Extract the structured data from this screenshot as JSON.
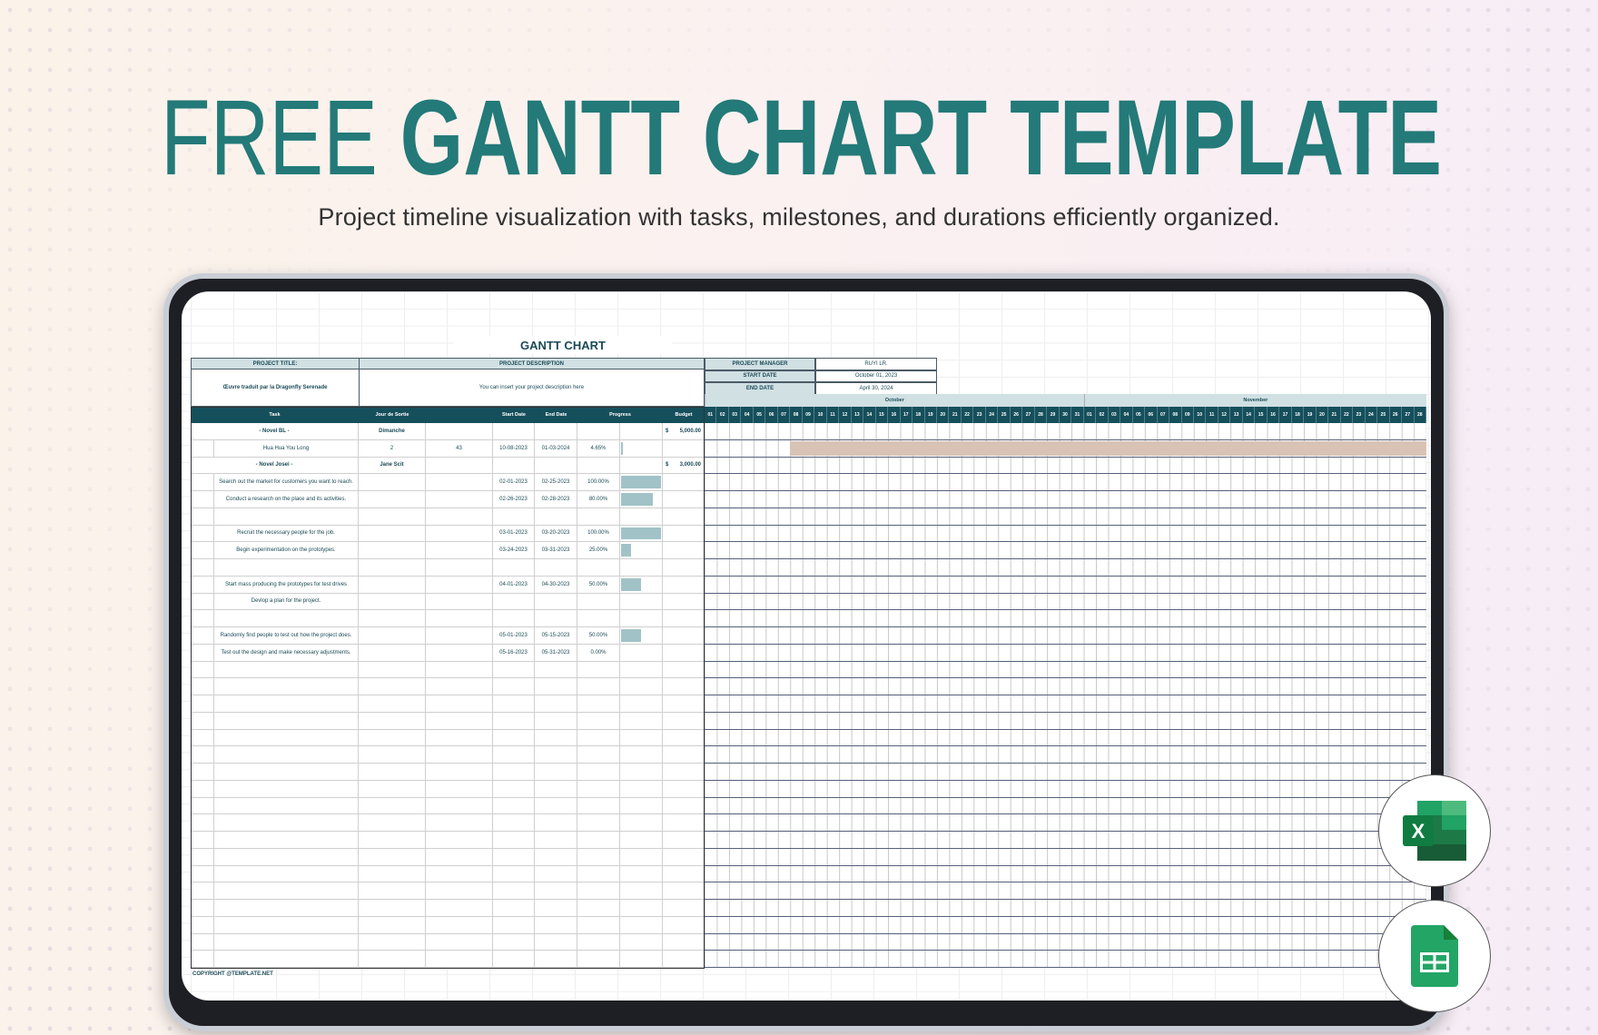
{
  "hero": {
    "title_light": "FREE ",
    "title_bold": "GANTT CHART TEMPLATE",
    "subtitle": "Project timeline visualization with tasks, milestones, and durations efficiently organized."
  },
  "sheet": {
    "title": "GANTT CHART",
    "project_title_label": "PROJECT TITLE:",
    "project_title": "Œuvre traduit par la Dragonfly Serenade",
    "project_description_label": "PROJECT DESCRIPTION",
    "project_description": "You can insert your project description here",
    "meta": [
      {
        "label": "PROJECT MANAGER",
        "value": "RUYI LR."
      },
      {
        "label": "START DATE",
        "value": "October 01, 2023"
      },
      {
        "label": "END DATE",
        "value": "April 30, 2024"
      }
    ],
    "columns": [
      "Task",
      "Jour de Sortie",
      "",
      "Start Date",
      "End Date",
      "Progress",
      "Budget"
    ],
    "months": [
      {
        "name": "October",
        "days": 31
      },
      {
        "name": "November",
        "days": 28
      }
    ],
    "rows": [
      {
        "group": true,
        "task": "- Novel BL -",
        "jour": "Dimanche",
        "currency": "$",
        "budget": "5,000.00"
      },
      {
        "task": "Hua Hua You Long",
        "jour": "2",
        "extra": "43",
        "start": "10-08-2023",
        "end": "01-03-2024",
        "progress_text": "4.65%",
        "progress": 4.65,
        "bar_start_day": 8
      },
      {
        "group": true,
        "task": "- Novel Josei -",
        "jour": "Jane Scit",
        "currency": "$",
        "budget": "3,000.00"
      },
      {
        "task": "Search out the market for customers you want to reach.",
        "start": "02-01-2023",
        "end": "02-25-2023",
        "progress_text": "100.00%",
        "progress": 100
      },
      {
        "task": "Conduct a research on the place and its activities.",
        "start": "02-26-2023",
        "end": "02-28-2023",
        "progress_text": "80.00%",
        "progress": 80
      },
      {},
      {
        "task": "Recruit the necessary people for the job.",
        "start": "03-01-2023",
        "end": "03-20-2023",
        "progress_text": "100.00%",
        "progress": 100
      },
      {
        "task": "Begin experimentation on the prototypes.",
        "start": "03-24-2023",
        "end": "03-31-2023",
        "progress_text": "25.00%",
        "progress": 25
      },
      {},
      {
        "task": "Start mass producing the prototypes for test drives",
        "start": "04-01-2023",
        "end": "04-30-2023",
        "progress_text": "50.00%",
        "progress": 50
      },
      {
        "task": "Devlop a plan for the project."
      },
      {},
      {
        "task": "Randomly find people to test out how the project does.",
        "start": "05-01-2023",
        "end": "05-15-2023",
        "progress_text": "50.00%",
        "progress": 50
      },
      {
        "task": "Test out the design and make necessary adjustments.",
        "start": "05-16-2023",
        "end": "05-31-2023",
        "progress_text": "0.00%",
        "progress": 0
      },
      {},
      {},
      {},
      {},
      {},
      {},
      {},
      {},
      {},
      {},
      {},
      {},
      {},
      {},
      {},
      {},
      {},
      {}
    ],
    "copyright": "COPYRIGHT @TEMPLATE.NET"
  },
  "colors": {
    "accent": "#237a78",
    "header_dark": "#164f5c",
    "header_light": "#d0e0e3",
    "gantt_bar": "#d8c3b6",
    "progress_bar": "#a1c3c7"
  },
  "badges": [
    {
      "icon": "excel-icon"
    },
    {
      "icon": "google-sheets-icon"
    }
  ]
}
